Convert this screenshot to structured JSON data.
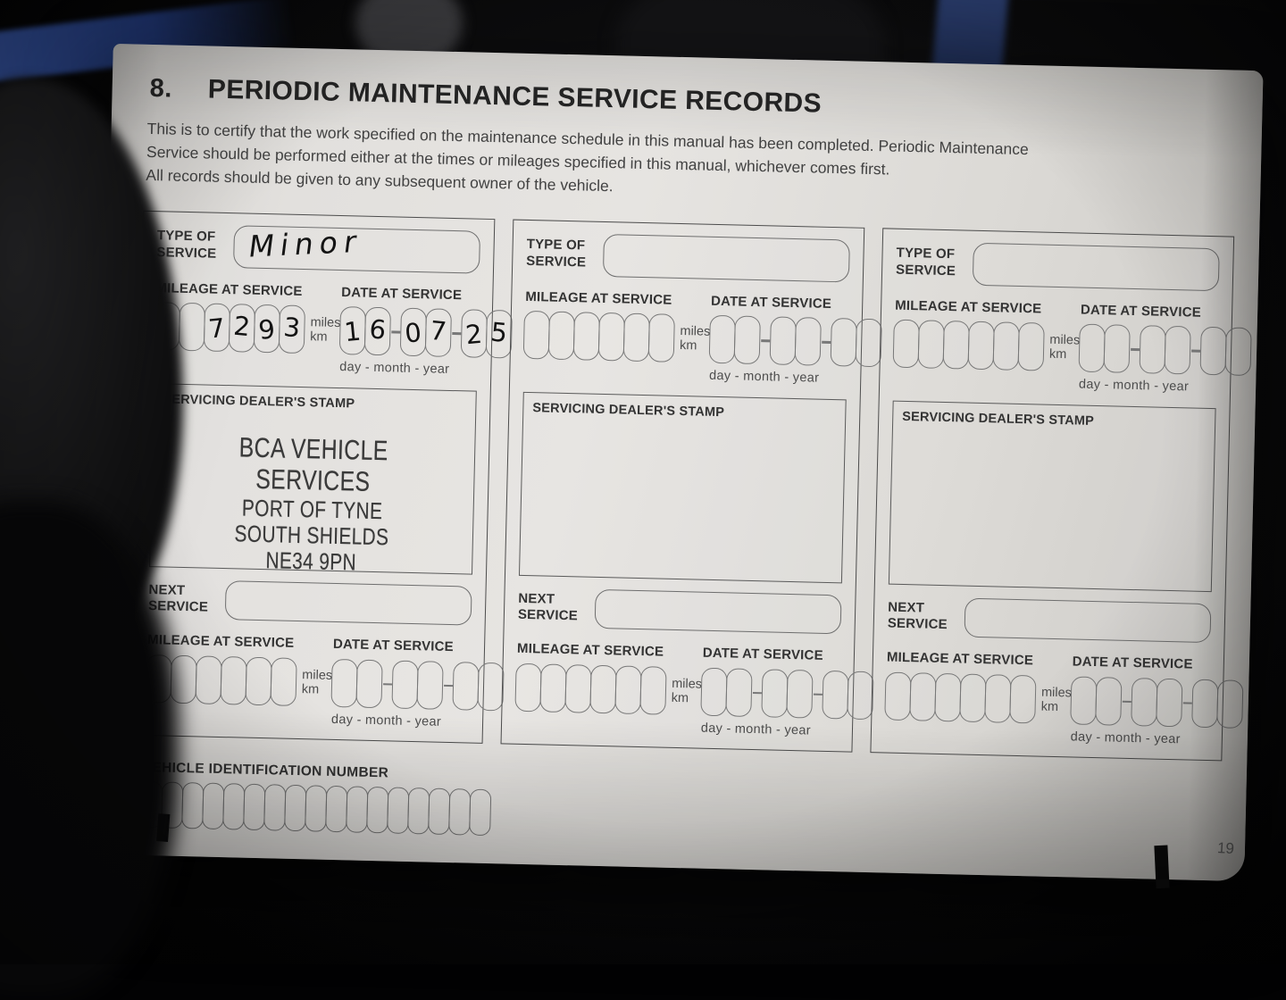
{
  "header": {
    "section_number": "8.",
    "title": "PERIODIC MAINTENANCE SERVICE RECORDS"
  },
  "intro": {
    "line1": "This is to certify that the work specified on the maintenance schedule in this manual has been completed. Periodic Maintenance",
    "line2": "Service should be performed either at the times or mileages specified in this manual, whichever comes first.",
    "line3": "All records should be given to any subsequent owner of the vehicle."
  },
  "labels": {
    "type_of_service": "TYPE OF SERVICE",
    "mileage_at_service": "MILEAGE AT SERVICE",
    "date_at_service": "DATE AT SERVICE",
    "miles": "miles",
    "km": "km",
    "day_month_year": "day - month - year",
    "dealer_stamp": "SERVICING DEALER'S STAMP",
    "next_service": "NEXT SERVICE",
    "vin": "VEHICLE IDENTIFICATION NUMBER"
  },
  "records": [
    {
      "type_of_service": "Minor",
      "mileage_digits": [
        "",
        "",
        "7",
        "2",
        "9",
        "3"
      ],
      "date_digits": [
        "1",
        "6",
        "0",
        "7",
        "2",
        "5"
      ],
      "dealer_stamp_lines": [
        "BCA VEHICLE SERVICES",
        "PORT OF TYNE",
        "SOUTH SHIELDS",
        "NE34 9PN"
      ],
      "next_service_value": "",
      "next_mileage_digits": [
        "",
        "",
        "",
        "",
        "",
        ""
      ],
      "next_date_digits": [
        "",
        "",
        "",
        "",
        "",
        ""
      ]
    },
    {
      "type_of_service": "",
      "mileage_digits": [
        "",
        "",
        "",
        "",
        "",
        ""
      ],
      "date_digits": [
        "",
        "",
        "",
        "",
        "",
        ""
      ],
      "dealer_stamp_lines": [
        "",
        "",
        "",
        ""
      ],
      "next_service_value": "",
      "next_mileage_digits": [
        "",
        "",
        "",
        "",
        "",
        ""
      ],
      "next_date_digits": [
        "",
        "",
        "",
        "",
        "",
        ""
      ]
    },
    {
      "type_of_service": "",
      "mileage_digits": [
        "",
        "",
        "",
        "",
        "",
        ""
      ],
      "date_digits": [
        "",
        "",
        "",
        "",
        "",
        ""
      ],
      "dealer_stamp_lines": [
        "",
        "",
        "",
        ""
      ],
      "next_service_value": "",
      "next_mileage_digits": [
        "",
        "",
        "",
        "",
        "",
        ""
      ],
      "next_date_digits": [
        "",
        "",
        "",
        "",
        "",
        ""
      ]
    }
  ],
  "footer": {
    "page_number": "19"
  },
  "colors": {
    "paper": "#e2e0dd",
    "ink": "#2c2c2c",
    "stamp_ink": "#3a3a3a",
    "handwriting_ink": "#141414",
    "background": "#020203"
  }
}
